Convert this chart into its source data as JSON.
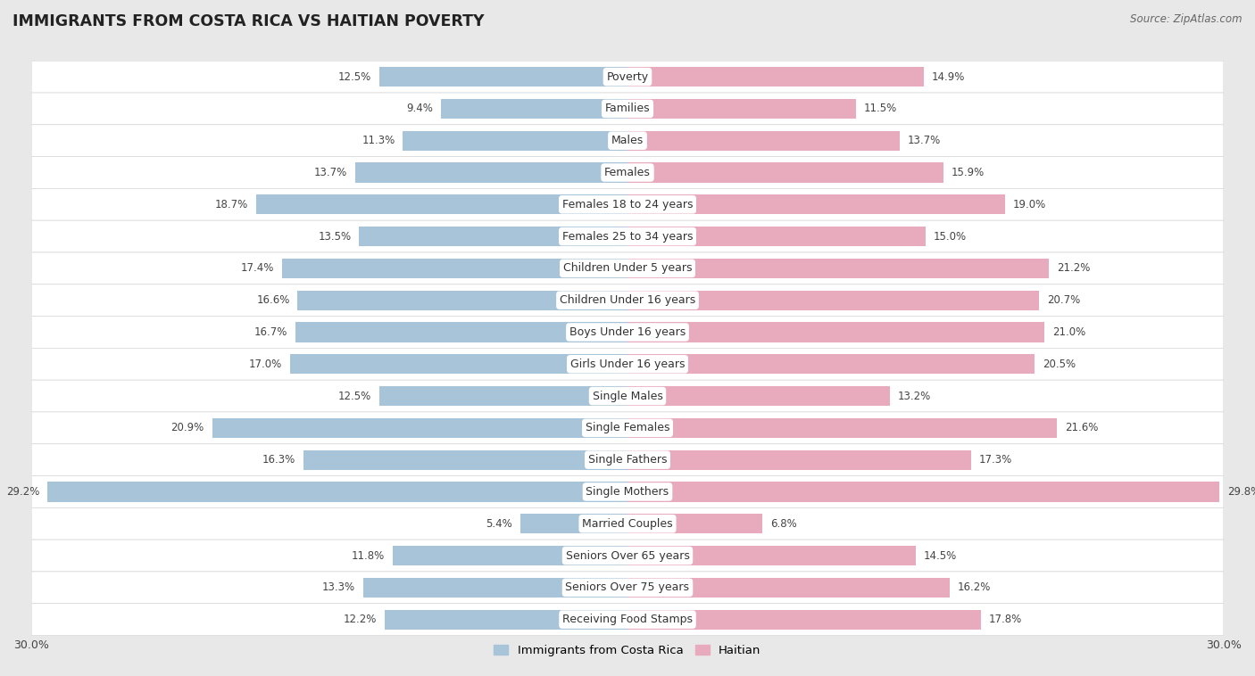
{
  "title": "IMMIGRANTS FROM COSTA RICA VS HAITIAN POVERTY",
  "source": "Source: ZipAtlas.com",
  "categories": [
    "Poverty",
    "Families",
    "Males",
    "Females",
    "Females 18 to 24 years",
    "Females 25 to 34 years",
    "Children Under 5 years",
    "Children Under 16 years",
    "Boys Under 16 years",
    "Girls Under 16 years",
    "Single Males",
    "Single Females",
    "Single Fathers",
    "Single Mothers",
    "Married Couples",
    "Seniors Over 65 years",
    "Seniors Over 75 years",
    "Receiving Food Stamps"
  ],
  "costa_rica": [
    12.5,
    9.4,
    11.3,
    13.7,
    18.7,
    13.5,
    17.4,
    16.6,
    16.7,
    17.0,
    12.5,
    20.9,
    16.3,
    29.2,
    5.4,
    11.8,
    13.3,
    12.2
  ],
  "haitian": [
    14.9,
    11.5,
    13.7,
    15.9,
    19.0,
    15.0,
    21.2,
    20.7,
    21.0,
    20.5,
    13.2,
    21.6,
    17.3,
    29.8,
    6.8,
    14.5,
    16.2,
    17.8
  ],
  "costa_rica_color": "#a8c4d8",
  "haitian_color": "#e8abbe",
  "background_color": "#ffffff",
  "row_bg": "#ffffff",
  "sep_color": "#d8d8d8",
  "outer_bg": "#e8e8e8",
  "xlim": 30.0,
  "bar_height": 0.62,
  "legend_label_cr": "Immigrants from Costa Rica",
  "legend_label_h": "Haitian",
  "title_fontsize": 12.5,
  "label_fontsize": 9,
  "value_fontsize": 8.5,
  "source_fontsize": 8.5
}
